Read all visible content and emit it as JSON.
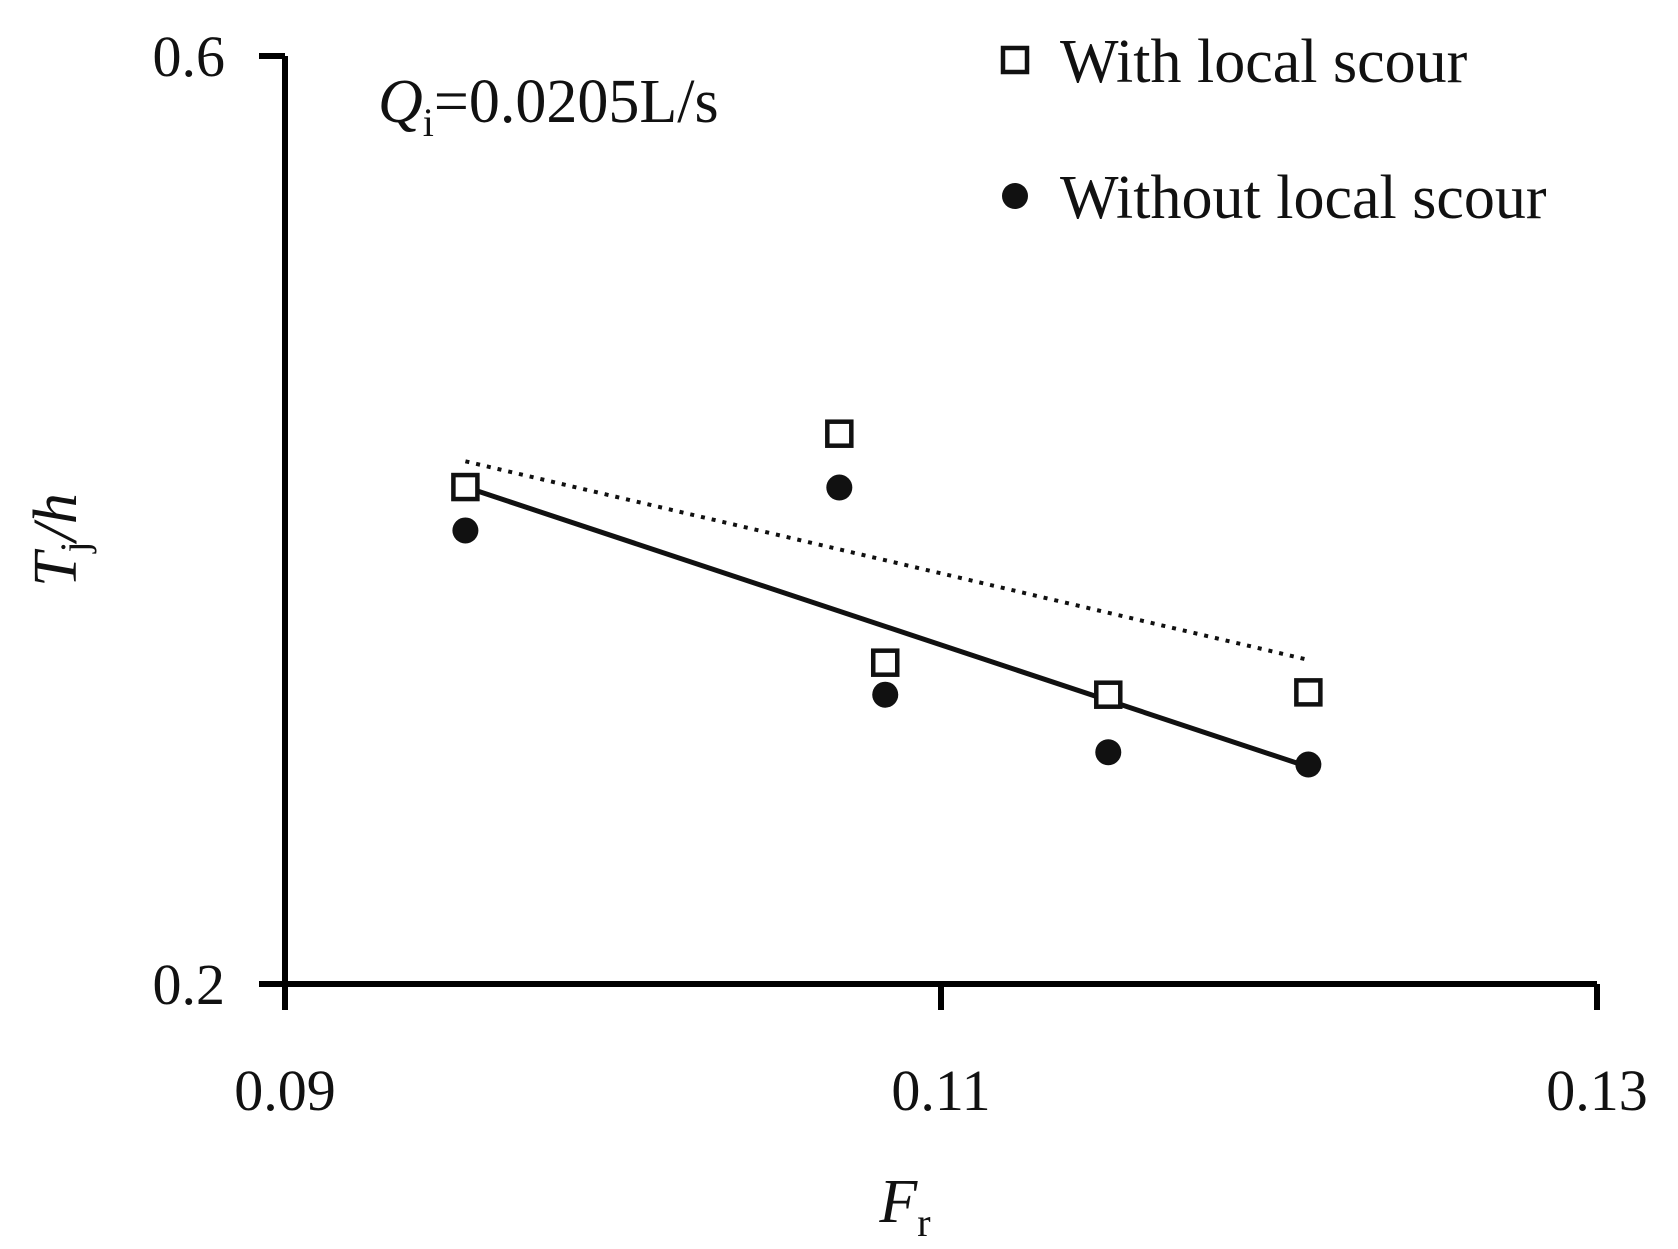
{
  "chart_data": {
    "type": "scatter",
    "annotation": {
      "var": "Q",
      "sub": "i",
      "rest": "=0.0205L/s"
    },
    "xlabel": {
      "main": "F",
      "sub": "r"
    },
    "ylabel": {
      "main": "T",
      "sub": "j",
      "rest": "/h"
    },
    "xlim": [
      0.09,
      0.13
    ],
    "ylim": [
      0.2,
      0.6
    ],
    "xticks": [
      {
        "value": 0.09,
        "label": "0.09"
      },
      {
        "value": 0.11,
        "label": "0.11"
      },
      {
        "value": 0.13,
        "label": "0.13"
      }
    ],
    "yticks": [
      {
        "value": 0.6,
        "label": "0.6"
      },
      {
        "value": 0.2,
        "label": "0.2"
      }
    ],
    "grid": false,
    "legend_position": "top-right",
    "series": [
      {
        "name": "With local scour",
        "marker": "open-square",
        "color": "#111111",
        "trendline": "dotted",
        "trend": [
          [
            0.0955,
            0.4253
          ],
          [
            0.1212,
            0.3397
          ]
        ],
        "points": [
          {
            "x": 0.0955,
            "y": 0.4142
          },
          {
            "x": 0.1069,
            "y": 0.4372
          },
          {
            "x": 0.1083,
            "y": 0.3385
          },
          {
            "x": 0.1151,
            "y": 0.3247
          },
          {
            "x": 0.1212,
            "y": 0.3257
          }
        ]
      },
      {
        "name": "Without local scour",
        "marker": "filled-circle",
        "color": "#111111",
        "trendline": "solid",
        "trend": [
          [
            0.0955,
            0.4142
          ],
          [
            0.1212,
            0.2936
          ]
        ],
        "points": [
          {
            "x": 0.0955,
            "y": 0.3955
          },
          {
            "x": 0.1069,
            "y": 0.414
          },
          {
            "x": 0.1083,
            "y": 0.3247
          },
          {
            "x": 0.1151,
            "y": 0.2999
          },
          {
            "x": 0.1212,
            "y": 0.2946
          }
        ]
      }
    ]
  }
}
